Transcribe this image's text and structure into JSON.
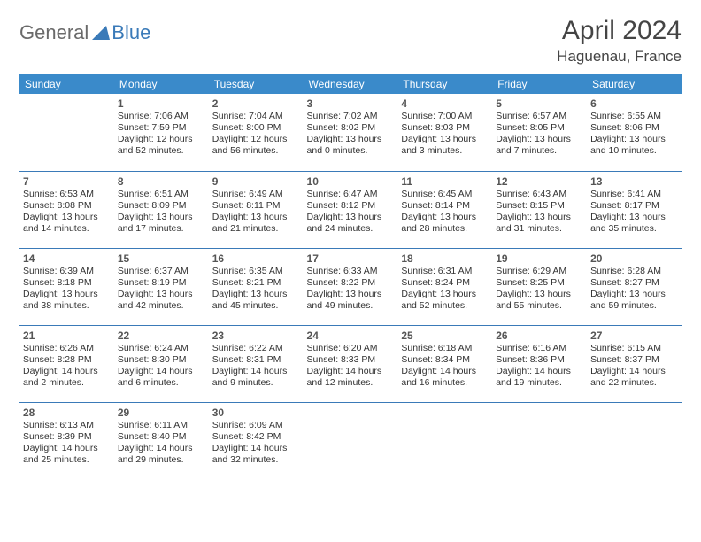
{
  "brand": {
    "part1": "General",
    "part2": "Blue"
  },
  "title": "April 2024",
  "location": "Haguenau, France",
  "header_bg": "#3a8aca",
  "header_fg": "#ffffff",
  "rule_color": "#3a7ab8",
  "background_color": "#ffffff",
  "text_color": "#333333",
  "daynum_color": "#555555",
  "font_family": "Arial",
  "title_fontsize": 30,
  "location_fontsize": 17,
  "header_fontsize": 12,
  "daynum_fontsize": 12,
  "body_fontsize": 10.5,
  "weekdays": [
    "Sunday",
    "Monday",
    "Tuesday",
    "Wednesday",
    "Thursday",
    "Friday",
    "Saturday"
  ],
  "start_offset": 1,
  "days": [
    {
      "n": 1,
      "sunrise": "7:06 AM",
      "sunset": "7:59 PM",
      "daylight": "12 hours and 52 minutes."
    },
    {
      "n": 2,
      "sunrise": "7:04 AM",
      "sunset": "8:00 PM",
      "daylight": "12 hours and 56 minutes."
    },
    {
      "n": 3,
      "sunrise": "7:02 AM",
      "sunset": "8:02 PM",
      "daylight": "13 hours and 0 minutes."
    },
    {
      "n": 4,
      "sunrise": "7:00 AM",
      "sunset": "8:03 PM",
      "daylight": "13 hours and 3 minutes."
    },
    {
      "n": 5,
      "sunrise": "6:57 AM",
      "sunset": "8:05 PM",
      "daylight": "13 hours and 7 minutes."
    },
    {
      "n": 6,
      "sunrise": "6:55 AM",
      "sunset": "8:06 PM",
      "daylight": "13 hours and 10 minutes."
    },
    {
      "n": 7,
      "sunrise": "6:53 AM",
      "sunset": "8:08 PM",
      "daylight": "13 hours and 14 minutes."
    },
    {
      "n": 8,
      "sunrise": "6:51 AM",
      "sunset": "8:09 PM",
      "daylight": "13 hours and 17 minutes."
    },
    {
      "n": 9,
      "sunrise": "6:49 AM",
      "sunset": "8:11 PM",
      "daylight": "13 hours and 21 minutes."
    },
    {
      "n": 10,
      "sunrise": "6:47 AM",
      "sunset": "8:12 PM",
      "daylight": "13 hours and 24 minutes."
    },
    {
      "n": 11,
      "sunrise": "6:45 AM",
      "sunset": "8:14 PM",
      "daylight": "13 hours and 28 minutes."
    },
    {
      "n": 12,
      "sunrise": "6:43 AM",
      "sunset": "8:15 PM",
      "daylight": "13 hours and 31 minutes."
    },
    {
      "n": 13,
      "sunrise": "6:41 AM",
      "sunset": "8:17 PM",
      "daylight": "13 hours and 35 minutes."
    },
    {
      "n": 14,
      "sunrise": "6:39 AM",
      "sunset": "8:18 PM",
      "daylight": "13 hours and 38 minutes."
    },
    {
      "n": 15,
      "sunrise": "6:37 AM",
      "sunset": "8:19 PM",
      "daylight": "13 hours and 42 minutes."
    },
    {
      "n": 16,
      "sunrise": "6:35 AM",
      "sunset": "8:21 PM",
      "daylight": "13 hours and 45 minutes."
    },
    {
      "n": 17,
      "sunrise": "6:33 AM",
      "sunset": "8:22 PM",
      "daylight": "13 hours and 49 minutes."
    },
    {
      "n": 18,
      "sunrise": "6:31 AM",
      "sunset": "8:24 PM",
      "daylight": "13 hours and 52 minutes."
    },
    {
      "n": 19,
      "sunrise": "6:29 AM",
      "sunset": "8:25 PM",
      "daylight": "13 hours and 55 minutes."
    },
    {
      "n": 20,
      "sunrise": "6:28 AM",
      "sunset": "8:27 PM",
      "daylight": "13 hours and 59 minutes."
    },
    {
      "n": 21,
      "sunrise": "6:26 AM",
      "sunset": "8:28 PM",
      "daylight": "14 hours and 2 minutes."
    },
    {
      "n": 22,
      "sunrise": "6:24 AM",
      "sunset": "8:30 PM",
      "daylight": "14 hours and 6 minutes."
    },
    {
      "n": 23,
      "sunrise": "6:22 AM",
      "sunset": "8:31 PM",
      "daylight": "14 hours and 9 minutes."
    },
    {
      "n": 24,
      "sunrise": "6:20 AM",
      "sunset": "8:33 PM",
      "daylight": "14 hours and 12 minutes."
    },
    {
      "n": 25,
      "sunrise": "6:18 AM",
      "sunset": "8:34 PM",
      "daylight": "14 hours and 16 minutes."
    },
    {
      "n": 26,
      "sunrise": "6:16 AM",
      "sunset": "8:36 PM",
      "daylight": "14 hours and 19 minutes."
    },
    {
      "n": 27,
      "sunrise": "6:15 AM",
      "sunset": "8:37 PM",
      "daylight": "14 hours and 22 minutes."
    },
    {
      "n": 28,
      "sunrise": "6:13 AM",
      "sunset": "8:39 PM",
      "daylight": "14 hours and 25 minutes."
    },
    {
      "n": 29,
      "sunrise": "6:11 AM",
      "sunset": "8:40 PM",
      "daylight": "14 hours and 29 minutes."
    },
    {
      "n": 30,
      "sunrise": "6:09 AM",
      "sunset": "8:42 PM",
      "daylight": "14 hours and 32 minutes."
    }
  ]
}
